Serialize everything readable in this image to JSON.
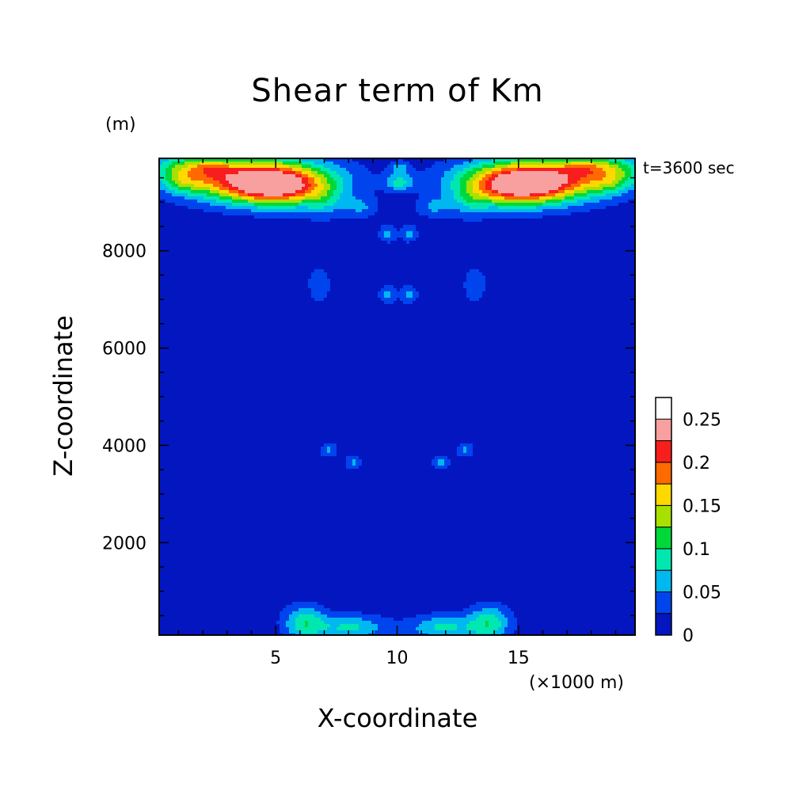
{
  "chart_data": {
    "type": "heatmap",
    "title": "Shear term of Km",
    "xlabel": "X-coordinate",
    "ylabel": "Z-coordinate",
    "x_unit": "(×1000 m)",
    "y_unit": "(m)",
    "annotation": "t=3600 sec",
    "xlim": [
      0.2,
      19.8
    ],
    "ylim": [
      100,
      9900
    ],
    "xticks": [
      5,
      10,
      15
    ],
    "yticks": [
      2000,
      4000,
      6000,
      8000
    ],
    "color_levels": [
      0,
      0.025,
      0.05,
      0.075,
      0.1,
      0.125,
      0.15,
      0.175,
      0.2,
      0.225,
      0.25,
      0.275
    ],
    "colorbar_labels": [
      "0",
      "0.05",
      "0.1",
      "0.15",
      "0.2",
      "0.25"
    ],
    "colors": [
      "#0416c0",
      "#0044ee",
      "#00b8f0",
      "#00e8b0",
      "#00d83a",
      "#a8e000",
      "#ffd800",
      "#ff6a00",
      "#f81e1e",
      "#f8a0a0"
    ],
    "background_value": 0.01,
    "features": [
      {
        "x": 4.3,
        "y": 9450,
        "sx": 2.0,
        "sy": 300,
        "value": 0.24
      },
      {
        "x": 15.7,
        "y": 9450,
        "sx": 2.0,
        "sy": 300,
        "value": 0.24
      },
      {
        "x": 5.2,
        "y": 9250,
        "sx": 1.2,
        "sy": 250,
        "value": 0.09
      },
      {
        "x": 14.8,
        "y": 9250,
        "sx": 1.2,
        "sy": 250,
        "value": 0.09
      },
      {
        "x": 1.0,
        "y": 9700,
        "sx": 0.9,
        "sy": 200,
        "value": 0.07
      },
      {
        "x": 19.0,
        "y": 9700,
        "sx": 0.9,
        "sy": 200,
        "value": 0.07
      },
      {
        "x": 2.3,
        "y": 9720,
        "sx": 0.7,
        "sy": 150,
        "value": 0.06
      },
      {
        "x": 17.7,
        "y": 9720,
        "sx": 0.7,
        "sy": 150,
        "value": 0.06
      },
      {
        "x": 1.2,
        "y": 9400,
        "sx": 0.6,
        "sy": 150,
        "value": 0.045
      },
      {
        "x": 18.8,
        "y": 9400,
        "sx": 0.6,
        "sy": 150,
        "value": 0.045
      },
      {
        "x": 7.0,
        "y": 9000,
        "sx": 0.6,
        "sy": 250,
        "value": 0.04
      },
      {
        "x": 13.0,
        "y": 9000,
        "sx": 0.6,
        "sy": 250,
        "value": 0.04
      },
      {
        "x": 8.5,
        "y": 8900,
        "sx": 0.5,
        "sy": 150,
        "value": 0.04
      },
      {
        "x": 11.5,
        "y": 8900,
        "sx": 0.5,
        "sy": 150,
        "value": 0.04
      },
      {
        "x": 10.1,
        "y": 9400,
        "sx": 0.4,
        "sy": 120,
        "value": 0.07
      },
      {
        "x": 10.1,
        "y": 9700,
        "sx": 0.3,
        "sy": 100,
        "value": 0.05
      },
      {
        "x": 9.6,
        "y": 8350,
        "sx": 0.25,
        "sy": 120,
        "value": 0.045
      },
      {
        "x": 10.5,
        "y": 8350,
        "sx": 0.25,
        "sy": 120,
        "value": 0.045
      },
      {
        "x": 9.6,
        "y": 7100,
        "sx": 0.25,
        "sy": 130,
        "value": 0.045
      },
      {
        "x": 10.5,
        "y": 7100,
        "sx": 0.25,
        "sy": 130,
        "value": 0.045
      },
      {
        "x": 6.8,
        "y": 7300,
        "sx": 0.3,
        "sy": 250,
        "value": 0.04
      },
      {
        "x": 13.2,
        "y": 7300,
        "sx": 0.3,
        "sy": 250,
        "value": 0.04
      },
      {
        "x": 7.2,
        "y": 3900,
        "sx": 0.25,
        "sy": 100,
        "value": 0.045
      },
      {
        "x": 12.8,
        "y": 3900,
        "sx": 0.25,
        "sy": 100,
        "value": 0.045
      },
      {
        "x": 8.2,
        "y": 3650,
        "sx": 0.25,
        "sy": 100,
        "value": 0.045
      },
      {
        "x": 11.8,
        "y": 3650,
        "sx": 0.25,
        "sy": 100,
        "value": 0.045
      },
      {
        "x": 6.2,
        "y": 350,
        "sx": 0.6,
        "sy": 250,
        "value": 0.08
      },
      {
        "x": 13.8,
        "y": 350,
        "sx": 0.6,
        "sy": 250,
        "value": 0.08
      },
      {
        "x": 8.1,
        "y": 250,
        "sx": 1.0,
        "sy": 180,
        "value": 0.07
      },
      {
        "x": 11.9,
        "y": 250,
        "sx": 1.0,
        "sy": 180,
        "value": 0.07
      }
    ]
  }
}
